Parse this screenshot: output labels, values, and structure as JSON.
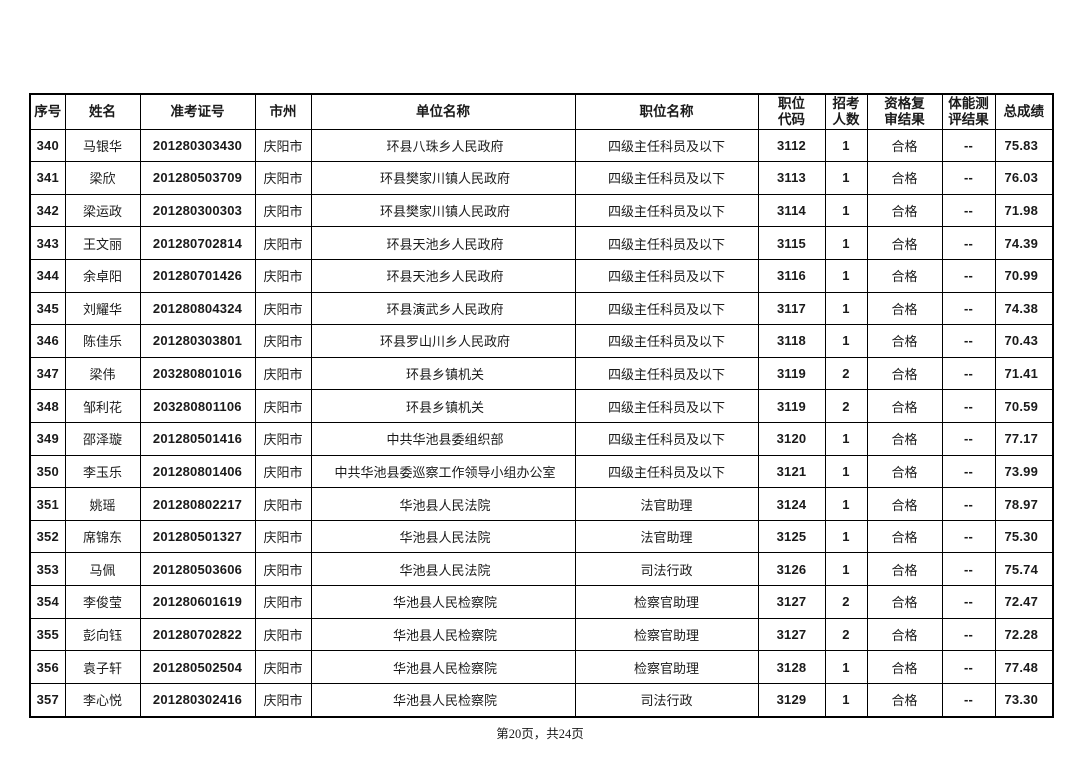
{
  "page": {
    "footer": "第20页，共24页"
  },
  "table": {
    "columns": [
      {
        "key": "index",
        "label": "序号"
      },
      {
        "key": "name",
        "label": "姓名"
      },
      {
        "key": "ticket",
        "label": "准考证号"
      },
      {
        "key": "city",
        "label": "市州"
      },
      {
        "key": "unit",
        "label": "单位名称"
      },
      {
        "key": "position",
        "label": "职位名称"
      },
      {
        "key": "code",
        "label": "职位\n代码"
      },
      {
        "key": "count",
        "label": "招考\n人数"
      },
      {
        "key": "review",
        "label": "资格复\n审结果"
      },
      {
        "key": "physical",
        "label": "体能测\n评结果"
      },
      {
        "key": "score",
        "label": "总成绩"
      }
    ],
    "rows": [
      [
        "340",
        "马银华",
        "201280303430",
        "庆阳市",
        "环县八珠乡人民政府",
        "四级主任科员及以下",
        "3112",
        "1",
        "合格",
        "--",
        "75.83"
      ],
      [
        "341",
        "梁欣",
        "201280503709",
        "庆阳市",
        "环县樊家川镇人民政府",
        "四级主任科员及以下",
        "3113",
        "1",
        "合格",
        "--",
        "76.03"
      ],
      [
        "342",
        "梁运政",
        "201280300303",
        "庆阳市",
        "环县樊家川镇人民政府",
        "四级主任科员及以下",
        "3114",
        "1",
        "合格",
        "--",
        "71.98"
      ],
      [
        "343",
        "王文丽",
        "201280702814",
        "庆阳市",
        "环县天池乡人民政府",
        "四级主任科员及以下",
        "3115",
        "1",
        "合格",
        "--",
        "74.39"
      ],
      [
        "344",
        "余卓阳",
        "201280701426",
        "庆阳市",
        "环县天池乡人民政府",
        "四级主任科员及以下",
        "3116",
        "1",
        "合格",
        "--",
        "70.99"
      ],
      [
        "345",
        "刘耀华",
        "201280804324",
        "庆阳市",
        "环县演武乡人民政府",
        "四级主任科员及以下",
        "3117",
        "1",
        "合格",
        "--",
        "74.38"
      ],
      [
        "346",
        "陈佳乐",
        "201280303801",
        "庆阳市",
        "环县罗山川乡人民政府",
        "四级主任科员及以下",
        "3118",
        "1",
        "合格",
        "--",
        "70.43"
      ],
      [
        "347",
        "梁伟",
        "203280801016",
        "庆阳市",
        "环县乡镇机关",
        "四级主任科员及以下",
        "3119",
        "2",
        "合格",
        "--",
        "71.41"
      ],
      [
        "348",
        "邹利花",
        "203280801106",
        "庆阳市",
        "环县乡镇机关",
        "四级主任科员及以下",
        "3119",
        "2",
        "合格",
        "--",
        "70.59"
      ],
      [
        "349",
        "邵泽璇",
        "201280501416",
        "庆阳市",
        "中共华池县委组织部",
        "四级主任科员及以下",
        "3120",
        "1",
        "合格",
        "--",
        "77.17"
      ],
      [
        "350",
        "李玉乐",
        "201280801406",
        "庆阳市",
        "中共华池县委巡察工作领导小组办公室",
        "四级主任科员及以下",
        "3121",
        "1",
        "合格",
        "--",
        "73.99"
      ],
      [
        "351",
        "姚瑶",
        "201280802217",
        "庆阳市",
        "华池县人民法院",
        "法官助理",
        "3124",
        "1",
        "合格",
        "--",
        "78.97"
      ],
      [
        "352",
        "席锦东",
        "201280501327",
        "庆阳市",
        "华池县人民法院",
        "法官助理",
        "3125",
        "1",
        "合格",
        "--",
        "75.30"
      ],
      [
        "353",
        "马佩",
        "201280503606",
        "庆阳市",
        "华池县人民法院",
        "司法行政",
        "3126",
        "1",
        "合格",
        "--",
        "75.74"
      ],
      [
        "354",
        "李俊莹",
        "201280601619",
        "庆阳市",
        "华池县人民检察院",
        "检察官助理",
        "3127",
        "2",
        "合格",
        "--",
        "72.47"
      ],
      [
        "355",
        "彭向钰",
        "201280702822",
        "庆阳市",
        "华池县人民检察院",
        "检察官助理",
        "3127",
        "2",
        "合格",
        "--",
        "72.28"
      ],
      [
        "356",
        "袁子轩",
        "201280502504",
        "庆阳市",
        "华池县人民检察院",
        "检察官助理",
        "3128",
        "1",
        "合格",
        "--",
        "77.48"
      ],
      [
        "357",
        "李心悦",
        "201280302416",
        "庆阳市",
        "华池县人民检察院",
        "司法行政",
        "3129",
        "1",
        "合格",
        "--",
        "73.30"
      ]
    ]
  }
}
